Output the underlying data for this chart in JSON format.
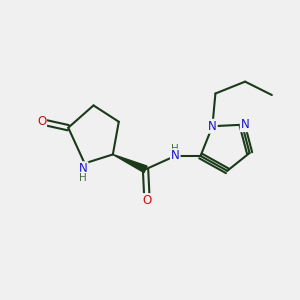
{
  "bg_color": "#f0f0f0",
  "bond_color": "#1a3a1a",
  "bond_width": 1.5,
  "atom_colors": {
    "N": "#1515cc",
    "O": "#cc1111",
    "C": "#1a3a1a",
    "H": "#4a6a4a"
  },
  "font_size_atom": 8.5,
  "font_size_H": 7.5
}
